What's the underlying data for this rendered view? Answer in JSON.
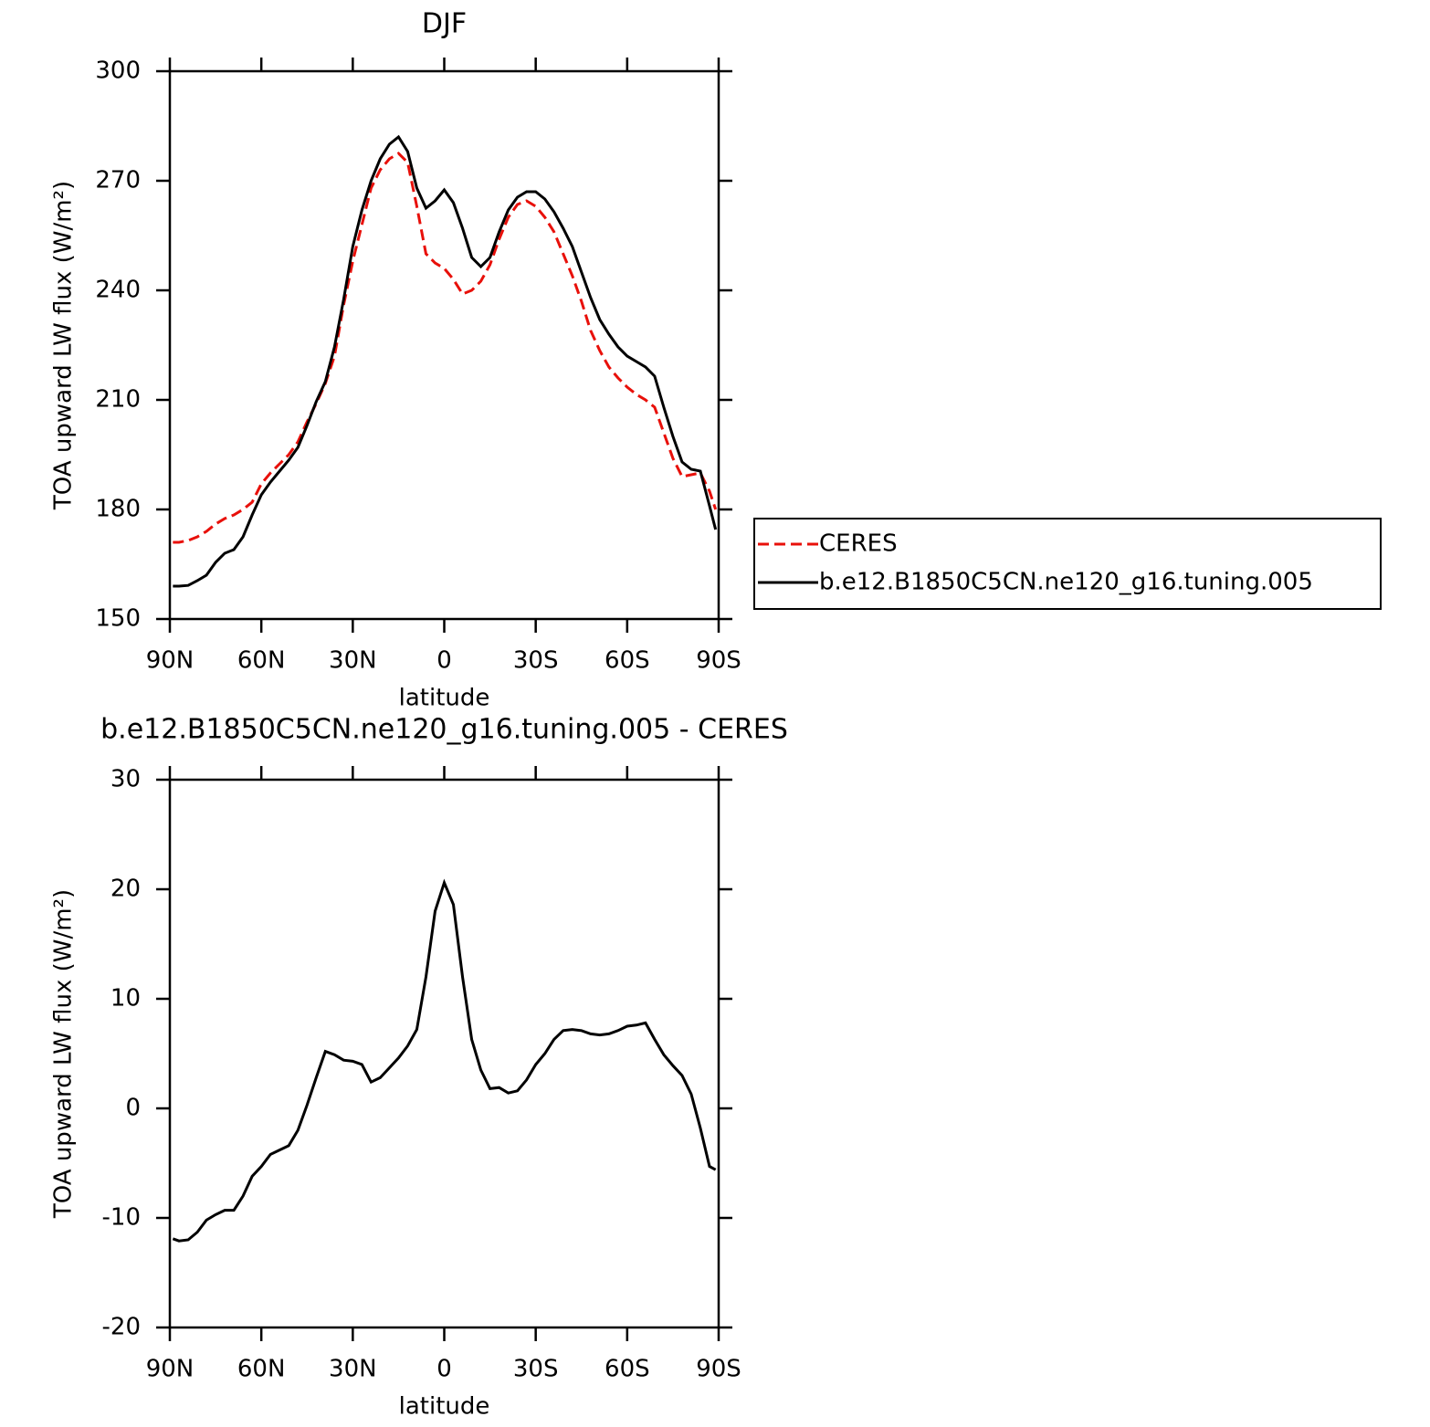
{
  "chart_data": [
    {
      "type": "line",
      "title": "DJF",
      "xlabel": "latitude",
      "ylabel": "TOA upward LW flux (W/m²)",
      "x": [
        89,
        87,
        84,
        81,
        78,
        75,
        72,
        69,
        66,
        63,
        60,
        57,
        54,
        51,
        48,
        45,
        42,
        39,
        36,
        33,
        30,
        27,
        24,
        21,
        18,
        15,
        12,
        9,
        6,
        3,
        0,
        -3,
        -6,
        -9,
        -12,
        -15,
        -18,
        -21,
        -24,
        -27,
        -30,
        -33,
        -36,
        -39,
        -42,
        -45,
        -48,
        -51,
        -54,
        -57,
        -60,
        -63,
        -66,
        -69,
        -72,
        -75,
        -78,
        -81,
        -84,
        -87,
        -89
      ],
      "series": [
        {
          "name": "CERES",
          "color": "#e8100a",
          "linestyle": "dashed",
          "values": [
            171,
            171,
            171.5,
            172.5,
            174,
            176,
            177.5,
            178.5,
            180,
            182,
            187,
            190,
            192.5,
            195,
            198.5,
            204,
            209,
            214.5,
            222,
            236,
            248,
            258,
            268,
            273,
            276,
            277.5,
            275,
            263,
            250,
            247.5,
            246,
            243,
            239,
            240,
            242.5,
            247,
            254,
            260,
            263.5,
            264.5,
            263,
            260,
            256,
            250,
            244,
            237,
            229,
            223.5,
            219,
            216,
            213.5,
            211.5,
            210,
            208,
            201,
            194,
            189,
            189.5,
            190,
            185,
            180
          ]
        },
        {
          "name": "b.e12.B1850C5CN.ne120_g16.tuning.005",
          "color": "#000000",
          "linestyle": "solid",
          "values": [
            159,
            159,
            159.2,
            160.5,
            162,
            165.5,
            168,
            169,
            172.5,
            178.5,
            184,
            187.5,
            190.5,
            193.5,
            197,
            203,
            209.5,
            215,
            224.5,
            237.5,
            252,
            262,
            270,
            276,
            280,
            282,
            278,
            268,
            262.5,
            264.5,
            267.5,
            264,
            257,
            249,
            246.5,
            249,
            256,
            262,
            265.5,
            267,
            267,
            265,
            261.5,
            257,
            252,
            245,
            238,
            232,
            228,
            224.5,
            222,
            220.5,
            219,
            216.5,
            208,
            200,
            193,
            191,
            190.5,
            181,
            174.5
          ]
        }
      ],
      "xlim": [
        90,
        -90
      ],
      "xticks": [
        {
          "value": 90,
          "label": "90N"
        },
        {
          "value": 60,
          "label": "60N"
        },
        {
          "value": 30,
          "label": "30N"
        },
        0,
        {
          "value": -30,
          "label": "30S"
        },
        {
          "value": -60,
          "label": "60S"
        },
        {
          "value": -90,
          "label": "90S"
        }
      ],
      "ylim": [
        150,
        300
      ],
      "yticks": [
        150,
        180,
        210,
        240,
        270,
        300
      ],
      "legend": "right"
    },
    {
      "type": "line",
      "title": "b.e12.B1850C5CN.ne120_g16.tuning.005 - CERES",
      "xlabel": "latitude",
      "ylabel": "TOA upward LW flux (W/m²)",
      "x": [
        89,
        87,
        84,
        81,
        78,
        75,
        72,
        69,
        66,
        63,
        60,
        57,
        54,
        51,
        48,
        45,
        42,
        39,
        36,
        33,
        30,
        27,
        24,
        21,
        18,
        15,
        12,
        9,
        6,
        3,
        0,
        -3,
        -6,
        -9,
        -12,
        -15,
        -18,
        -21,
        -24,
        -27,
        -30,
        -33,
        -36,
        -39,
        -42,
        -45,
        -48,
        -51,
        -54,
        -57,
        -60,
        -63,
        -66,
        -69,
        -72,
        -75,
        -78,
        -81,
        -84,
        -87,
        -89
      ],
      "series": [
        {
          "color": "#000000",
          "linestyle": "solid",
          "values": [
            -11.9,
            -12.1,
            -12,
            -11.3,
            -10.2,
            -9.7,
            -9.3,
            -9.3,
            -8,
            -6.2,
            -5.3,
            -4.2,
            -3.8,
            -3.4,
            -2.0,
            0.3,
            2.8,
            5.2,
            4.9,
            4.4,
            4.3,
            4.0,
            2.4,
            2.8,
            3.7,
            4.6,
            5.7,
            7.2,
            12,
            18,
            20.6,
            18.6,
            12,
            6.3,
            3.5,
            1.8,
            1.9,
            1.4,
            1.6,
            2.6,
            4.0,
            5.0,
            6.3,
            7.1,
            7.2,
            7.1,
            6.8,
            6.7,
            6.8,
            7.1,
            7.5,
            7.6,
            7.8,
            6.3,
            4.9,
            3.9,
            3.0,
            1.3,
            -1.8,
            -5.3,
            -5.6
          ]
        }
      ],
      "xlim": [
        90,
        -90
      ],
      "xticks": [
        {
          "value": 90,
          "label": "90N"
        },
        {
          "value": 60,
          "label": "60N"
        },
        {
          "value": 30,
          "label": "30N"
        },
        0,
        {
          "value": -30,
          "label": "30S"
        },
        {
          "value": -60,
          "label": "60S"
        },
        {
          "value": -90,
          "label": "90S"
        }
      ],
      "ylim": [
        -20,
        30
      ],
      "yticks": [
        -20,
        -10,
        0,
        10,
        20,
        30
      ]
    }
  ]
}
